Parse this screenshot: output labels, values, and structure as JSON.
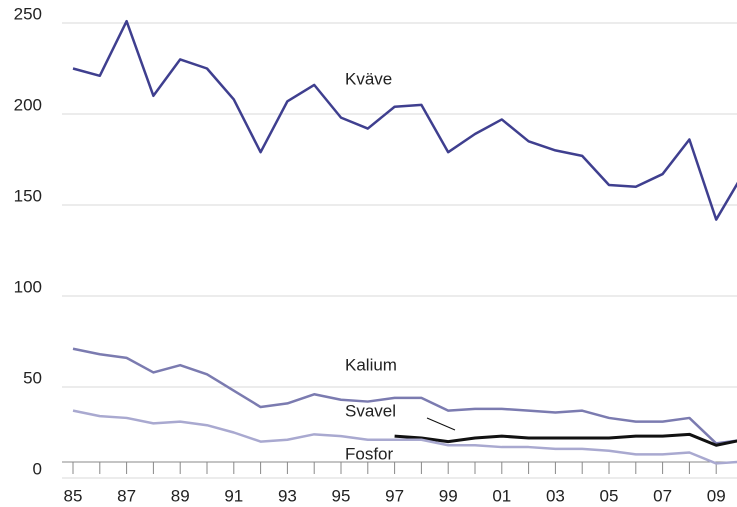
{
  "chart_data": {
    "type": "line",
    "categories": [
      "85",
      null,
      "87",
      null,
      "89",
      null,
      "91",
      null,
      "93",
      null,
      "95",
      null,
      "97",
      null,
      "99",
      null,
      "01",
      null,
      "03",
      null,
      "05",
      null,
      "07",
      null,
      "09",
      null
    ],
    "series": [
      {
        "name": "Kväve",
        "color": "#3f3f8f",
        "values": [
          225,
          221,
          251,
          210,
          230,
          225,
          208,
          179,
          207,
          216,
          198,
          192,
          204,
          205,
          179,
          189,
          197,
          185,
          180,
          177,
          161,
          160,
          167,
          186,
          142,
          167
        ]
      },
      {
        "name": "Kalium",
        "color": "#7b7bb0",
        "values": [
          71,
          68,
          66,
          58,
          62,
          57,
          48,
          39,
          41,
          46,
          43,
          42,
          44,
          44,
          37,
          38,
          38,
          37,
          36,
          37,
          33,
          31,
          31,
          33,
          19,
          21
        ]
      },
      {
        "name": "Svavel",
        "color": "#111111",
        "values": [
          null,
          null,
          null,
          null,
          null,
          null,
          null,
          null,
          null,
          null,
          null,
          null,
          23,
          22,
          20,
          22,
          23,
          22,
          22,
          22,
          22,
          23,
          23,
          24,
          18,
          21
        ]
      },
      {
        "name": "Fosfor",
        "color": "#a9a9d0",
        "values": [
          37,
          34,
          33,
          30,
          31,
          29,
          25,
          20,
          21,
          24,
          23,
          21,
          21,
          21,
          18,
          18,
          17,
          17,
          16,
          16,
          15,
          13,
          13,
          14,
          8,
          9
        ]
      }
    ],
    "ylim": [
      0,
      250
    ],
    "yticks": [
      0,
      50,
      100,
      150,
      200,
      250
    ],
    "grid": true
  }
}
